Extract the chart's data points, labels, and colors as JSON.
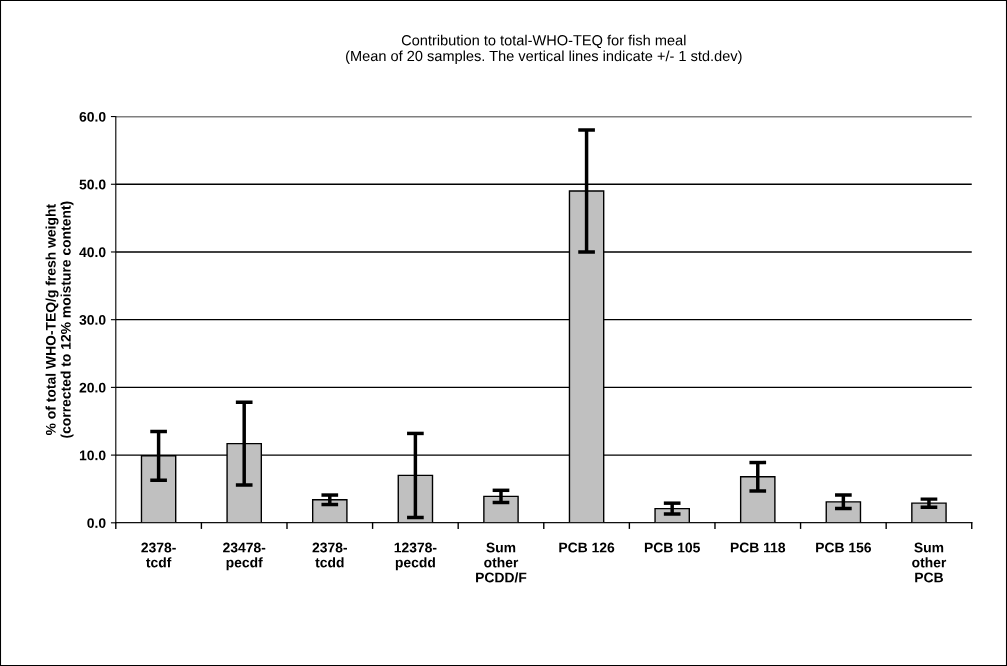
{
  "chart_data": {
    "type": "bar",
    "title": "Contribution to total-WHO-TEQ for fish meal\n(Mean of 20 samples. The vertical lines indicate +/- 1 std.dev)",
    "ylabel": "% of total WHO-TEQ/g fresh weight\n(corrected to 12% moisture content)",
    "categories": [
      "2378-\ntcdf",
      "23478-\npecdf",
      "2378-\ntcdd",
      "12378-\npecdd",
      "Sum\nother\nPCDD/F",
      "PCB 126",
      "PCB 105",
      "PCB 118",
      "PCB 156",
      "Sum\nother\nPCB"
    ],
    "values": [
      9.9,
      11.7,
      3.4,
      7.0,
      3.9,
      49.0,
      2.1,
      6.8,
      3.1,
      2.9
    ],
    "errors": [
      3.6,
      6.1,
      0.7,
      6.2,
      0.9,
      9.0,
      0.8,
      2.1,
      1.0,
      0.6
    ],
    "color": "#c0c0c0",
    "ylim": [
      0,
      60
    ],
    "yticks": [
      {
        "value": 0,
        "label": "0.0"
      },
      {
        "value": 10,
        "label": "10.0"
      },
      {
        "value": 20,
        "label": "20.0"
      },
      {
        "value": 30,
        "label": "30.0"
      },
      {
        "value": 40,
        "label": "40.0"
      },
      {
        "value": 50,
        "label": "50.0"
      },
      {
        "value": 60,
        "label": "60.0"
      }
    ],
    "grid": "y"
  }
}
